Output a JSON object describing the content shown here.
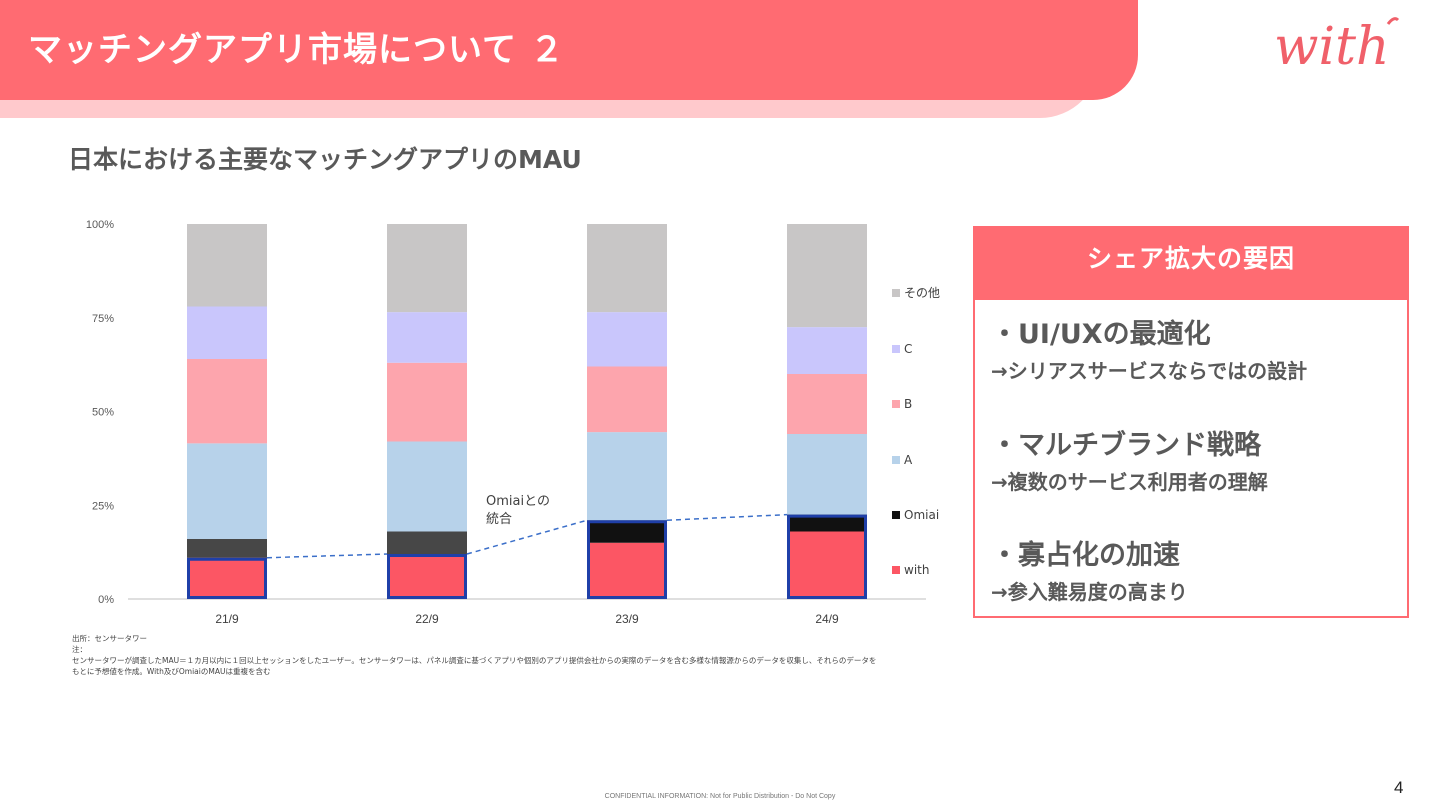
{
  "header": {
    "title": "マッチングアプリ市場について ２",
    "logo_text": "with"
  },
  "subtitle": "日本における主要なマッチングアプリのMAU",
  "chart_data": {
    "type": "bar",
    "stacked": true,
    "categories": [
      "21/9",
      "22/9",
      "23/9",
      "24/9"
    ],
    "series": [
      {
        "name": "with",
        "color": "#fc5664",
        "values": [
          11,
          12,
          15,
          18
        ]
      },
      {
        "name": "Omiai",
        "color": "#111111",
        "values": [
          0,
          0,
          6,
          4.5
        ]
      },
      {
        "name": "",
        "color": "#474747",
        "values": [
          5,
          6,
          0,
          0
        ]
      },
      {
        "name": "A",
        "color": "#b7d2ea",
        "values": [
          25.5,
          24,
          23.5,
          21.5
        ]
      },
      {
        "name": "B",
        "color": "#fda5ad",
        "values": [
          22.5,
          21,
          17.5,
          16
        ]
      },
      {
        "name": "C",
        "color": "#c9c6fc",
        "values": [
          14,
          13.5,
          14.5,
          12.5
        ]
      },
      {
        "name": "その他",
        "color": "#c8c6c6",
        "values": [
          22,
          23.5,
          23.5,
          27.5
        ]
      }
    ],
    "highlight": {
      "series": "with",
      "values": [
        11,
        12,
        21,
        22.5
      ],
      "color": "#1f3fa8"
    },
    "yticks": [
      "0%",
      "25%",
      "50%",
      "75%",
      "100%"
    ],
    "ylim": [
      0,
      100
    ],
    "grid": false,
    "legend": [
      "その他",
      "C",
      "B",
      "A",
      "Omiai",
      "with"
    ],
    "legend_position": "right",
    "annotation": [
      "Omiaiとの",
      "統合"
    ]
  },
  "notes": [
    "出所：センサータワー",
    "注：",
    "センサータワーが調査したMAU＝１カ月以内に１回以上セッションをしたユーザー。センサータワーは、パネル調査に基づくアプリや個別のアプリ提供会社からの実際のデータを含む多様な情報源からのデータを収集し、それらのデータを",
    "もとに予想値を作成。With及びOmiaiのMAUは重複を含む"
  ],
  "panel": {
    "title": "シェア拡大の要因",
    "factors": [
      {
        "title": "・UI/UXの最適化",
        "sub": "→シリアスサービスならではの設計"
      },
      {
        "title": "・マルチブランド戦略",
        "sub": "→複数のサービス利用者の理解"
      },
      {
        "title": "・寡占化の加速",
        "sub": "→参入難易度の高まり"
      }
    ]
  },
  "footer": "CONFIDENTIAL INFORMATION: Not for Public Distribution - Do Not Copy",
  "page_number": "4"
}
